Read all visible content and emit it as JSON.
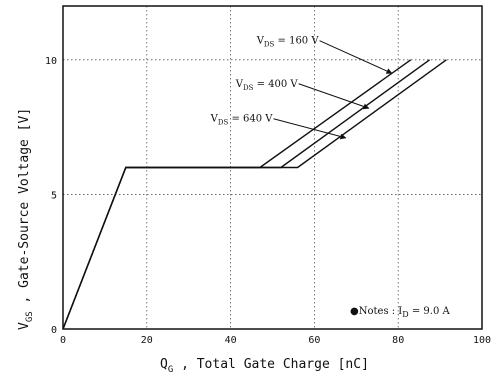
{
  "chart_data": {
    "type": "line",
    "title": "",
    "xlabel": "Q",
    "xlabel_sub": "G",
    "xlabel_rest": " , Total Gate Charge  [nC]",
    "ylabel": "V",
    "ylabel_sub": "GS",
    "ylabel_rest": " ,  Gate-Source Voltage   [V]",
    "xlim": [
      0,
      100
    ],
    "ylim": [
      0,
      12
    ],
    "xticks": [
      0,
      20,
      40,
      60,
      80,
      100
    ],
    "yticks": [
      0,
      5,
      10
    ],
    "grid": true,
    "series": [
      {
        "name": "V",
        "name_sub": "DS",
        "name_rest": " = 160 V",
        "x": [
          0,
          15,
          47,
          83
        ],
        "y": [
          0,
          6,
          6,
          10
        ]
      },
      {
        "name": "V",
        "name_sub": "DS",
        "name_rest": " = 400 V",
        "x": [
          0,
          15,
          52,
          87.5
        ],
        "y": [
          0,
          6,
          6,
          10
        ]
      },
      {
        "name": "V",
        "name_sub": "DS",
        "name_rest": " = 640 V",
        "x": [
          0,
          15,
          56,
          91.5
        ],
        "y": [
          0,
          6,
          6,
          10
        ]
      }
    ],
    "annotations": [
      {
        "series": 0,
        "label_x": 61,
        "label_y": 10.6,
        "arrow_x": 78.5,
        "arrow_y": 9.5
      },
      {
        "series": 1,
        "label_x": 56,
        "label_y": 9.0,
        "arrow_x": 73,
        "arrow_y": 8.2
      },
      {
        "series": 2,
        "label_x": 50,
        "label_y": 7.7,
        "arrow_x": 67.5,
        "arrow_y": 7.1
      }
    ],
    "note": {
      "bullet": "●",
      "text": "Notes : I",
      "sub": "D",
      "rest": " = 9.0 A"
    }
  }
}
